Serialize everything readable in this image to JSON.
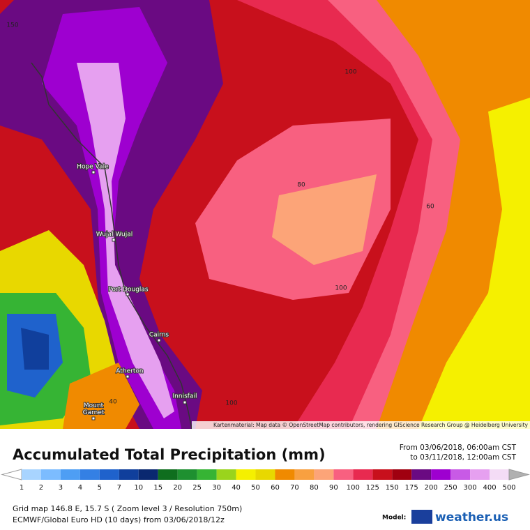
{
  "map": {
    "contour_labels": [
      "150",
      "100",
      "80",
      "60",
      "100",
      "100",
      "40"
    ],
    "places": [
      "Hope Vale",
      "Wujal Wujal",
      "Port Douglas",
      "Cairns",
      "Atherton",
      "Mount Garnet",
      "Innisfail"
    ],
    "attribution": "Kartenmaterial: Map data © OpenStreetMap contributors, rendering GIScience Research Group @ Heidelberg University"
  },
  "legend": {
    "title": "Accumulated Total Precipitation (mm)",
    "period": [
      "From 03/06/2018, 06:00am CST",
      "to 03/11/2018, 12:00am CST"
    ],
    "scale": {
      "labels": [
        1,
        2,
        3,
        4,
        5,
        7,
        10,
        15,
        20,
        25,
        30,
        40,
        50,
        60,
        70,
        80,
        90,
        100,
        125,
        150,
        175,
        200,
        250,
        300,
        400,
        500
      ],
      "colors": [
        "#a8d4ff",
        "#7cbcff",
        "#4e9ef4",
        "#3480e4",
        "#1f62cc",
        "#103f9c",
        "#0a2870",
        "#0f6e1e",
        "#1e9030",
        "#36b434",
        "#9ad41c",
        "#f5f000",
        "#e8d800",
        "#f08a00",
        "#f8a040",
        "#fca478",
        "#f86080",
        "#e82a50",
        "#c8101c",
        "#a00010",
        "#6a0a82",
        "#9e00d0",
        "#c85ae6",
        "#e6a0f0",
        "#f4dcf6"
      ]
    },
    "info": [
      "Grid map 146.8 E, 15.7 S ( Zoom level 3 / Resolution 750m)",
      "ECMWF/Global Euro HD (10 days) from 03/06/2018/12z"
    ],
    "model_label": "Model:",
    "brand": "weather.us"
  }
}
